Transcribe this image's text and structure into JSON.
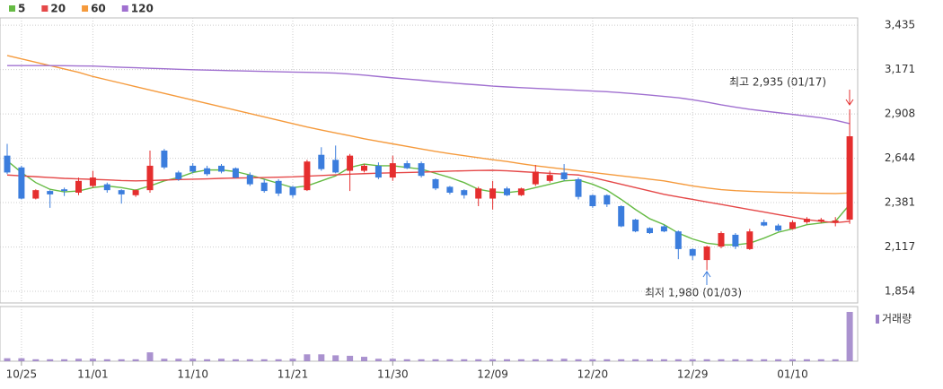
{
  "chart_data": {
    "type": "candlestick",
    "categories": [
      null,
      "10/25",
      null,
      null,
      null,
      null,
      "11/01",
      null,
      null,
      null,
      null,
      null,
      null,
      "11/10",
      null,
      null,
      null,
      null,
      null,
      null,
      "11/21",
      null,
      null,
      null,
      null,
      null,
      null,
      "11/30",
      null,
      null,
      null,
      null,
      null,
      null,
      "12/09",
      null,
      null,
      null,
      null,
      null,
      null,
      "12/20",
      null,
      null,
      null,
      null,
      null,
      null,
      "12/29",
      null,
      null,
      null,
      null,
      null,
      null,
      "01/10",
      null,
      null,
      null,
      null
    ],
    "open": [
      2660,
      2590,
      2405,
      2450,
      2460,
      2440,
      2480,
      2490,
      2455,
      2425,
      2455,
      2690,
      2560,
      2600,
      2585,
      2600,
      2585,
      2545,
      2500,
      2510,
      2475,
      2455,
      2665,
      2635,
      2570,
      2570,
      2600,
      2530,
      2615,
      2615,
      2520,
      2475,
      2455,
      2405,
      2405,
      2465,
      2425,
      2490,
      2510,
      2560,
      2520,
      2425,
      2425,
      2360,
      2280,
      2230,
      2240,
      2210,
      2105,
      2040,
      2120,
      2190,
      2105,
      2265,
      2245,
      2225,
      2265,
      2270,
      2265,
      2280
    ],
    "high": [
      2730,
      2600,
      2460,
      2455,
      2470,
      2530,
      2570,
      2500,
      2460,
      2460,
      2690,
      2700,
      2570,
      2615,
      2600,
      2610,
      2590,
      2560,
      2520,
      2520,
      2480,
      2635,
      2710,
      2720,
      2670,
      2610,
      2620,
      2660,
      2630,
      2625,
      2525,
      2480,
      2460,
      2475,
      2510,
      2475,
      2470,
      2605,
      2570,
      2610,
      2530,
      2430,
      2430,
      2365,
      2285,
      2235,
      2250,
      2215,
      2110,
      2125,
      2210,
      2200,
      2225,
      2280,
      2255,
      2275,
      2295,
      2290,
      2295,
      2935
    ],
    "low": [
      2550,
      2400,
      2400,
      2350,
      2420,
      2425,
      2470,
      2440,
      2375,
      2415,
      2440,
      2580,
      2510,
      2555,
      2540,
      2555,
      2525,
      2480,
      2440,
      2420,
      2410,
      2450,
      2570,
      2555,
      2450,
      2560,
      2520,
      2510,
      2580,
      2530,
      2455,
      2430,
      2405,
      2360,
      2340,
      2420,
      2420,
      2480,
      2500,
      2510,
      2400,
      2350,
      2355,
      2235,
      2205,
      2195,
      2205,
      2045,
      2040,
      1980,
      2110,
      2105,
      2100,
      2240,
      2210,
      2220,
      2255,
      2260,
      2240,
      2255
    ],
    "close": [
      2560,
      2405,
      2455,
      2430,
      2450,
      2510,
      2530,
      2455,
      2430,
      2455,
      2600,
      2590,
      2520,
      2565,
      2550,
      2565,
      2530,
      2490,
      2450,
      2435,
      2425,
      2625,
      2580,
      2560,
      2660,
      2600,
      2530,
      2615,
      2585,
      2540,
      2465,
      2440,
      2425,
      2465,
      2465,
      2425,
      2465,
      2565,
      2545,
      2520,
      2415,
      2360,
      2370,
      2240,
      2210,
      2200,
      2210,
      2105,
      2065,
      2120,
      2200,
      2120,
      2210,
      2245,
      2215,
      2265,
      2285,
      2280,
      2275,
      2775
    ],
    "volume": [
      6,
      6,
      4,
      4,
      4,
      5,
      5,
      4,
      4,
      4,
      18,
      5,
      5,
      5,
      4,
      5,
      4,
      4,
      4,
      4,
      5,
      14,
      14,
      12,
      11,
      9,
      5,
      5,
      4,
      4,
      4,
      4,
      4,
      4,
      4,
      4,
      4,
      4,
      4,
      5,
      4,
      4,
      4,
      4,
      4,
      4,
      4,
      4,
      4,
      4,
      4,
      4,
      4,
      4,
      4,
      4,
      4,
      4,
      4,
      100
    ],
    "up_color": "#e52e2e",
    "down_color": "#3b7ddd",
    "series": [
      {
        "name": "5",
        "color": "#66bb44",
        "values": [
          2630,
          2560,
          2500,
          2460,
          2445,
          2450,
          2470,
          2480,
          2470,
          2455,
          2480,
          2510,
          2530,
          2560,
          2575,
          2575,
          2565,
          2545,
          2520,
          2495,
          2470,
          2480,
          2510,
          2540,
          2590,
          2610,
          2600,
          2600,
          2590,
          2580,
          2555,
          2530,
          2500,
          2460,
          2445,
          2440,
          2450,
          2470,
          2490,
          2510,
          2515,
          2490,
          2455,
          2400,
          2340,
          2285,
          2250,
          2200,
          2165,
          2140,
          2130,
          2130,
          2140,
          2170,
          2205,
          2225,
          2250,
          2260,
          2270,
          2370
        ]
      },
      {
        "name": "20",
        "color": "#e54848",
        "values": [
          2545,
          2540,
          2535,
          2530,
          2525,
          2522,
          2519,
          2516,
          2512,
          2510,
          2512,
          2515,
          2518,
          2520,
          2522,
          2525,
          2527,
          2528,
          2530,
          2532,
          2534,
          2538,
          2542,
          2546,
          2550,
          2553,
          2556,
          2558,
          2560,
          2562,
          2565,
          2568,
          2570,
          2572,
          2573,
          2570,
          2565,
          2560,
          2555,
          2550,
          2545,
          2530,
          2510,
          2490,
          2470,
          2450,
          2430,
          2415,
          2400,
          2385,
          2370,
          2355,
          2340,
          2325,
          2310,
          2295,
          2280,
          2270,
          2262,
          2270
        ]
      },
      {
        "name": "60",
        "color": "#f59a3c",
        "values": [
          3255,
          3235,
          3215,
          3195,
          3175,
          3155,
          3130,
          3110,
          3090,
          3070,
          3050,
          3030,
          3010,
          2990,
          2970,
          2950,
          2930,
          2910,
          2890,
          2870,
          2850,
          2830,
          2812,
          2795,
          2778,
          2760,
          2745,
          2730,
          2715,
          2700,
          2685,
          2672,
          2660,
          2648,
          2636,
          2625,
          2612,
          2600,
          2590,
          2580,
          2570,
          2560,
          2550,
          2540,
          2530,
          2520,
          2510,
          2495,
          2480,
          2468,
          2458,
          2452,
          2448,
          2445,
          2442,
          2440,
          2438,
          2436,
          2435,
          2438
        ]
      },
      {
        "name": "120",
        "color": "#a070d0",
        "values": [
          3195,
          3195,
          3195,
          3195,
          3194,
          3193,
          3192,
          3188,
          3185,
          3182,
          3179,
          3176,
          3173,
          3170,
          3168,
          3166,
          3164,
          3162,
          3160,
          3158,
          3156,
          3155,
          3153,
          3150,
          3145,
          3138,
          3130,
          3122,
          3115,
          3108,
          3100,
          3093,
          3086,
          3080,
          3073,
          3068,
          3064,
          3060,
          3056,
          3052,
          3048,
          3044,
          3040,
          3034,
          3027,
          3020,
          3012,
          3004,
          2992,
          2978,
          2962,
          2948,
          2935,
          2925,
          2915,
          2905,
          2895,
          2885,
          2870,
          2850
        ]
      }
    ],
    "ylim": [
      1785,
      3478
    ],
    "yticks": [
      {
        "value": 1854,
        "label": "1,854"
      },
      {
        "value": 2117,
        "label": "2,117"
      },
      {
        "value": 2381,
        "label": "2,381"
      },
      {
        "value": 2644,
        "label": "2,644"
      },
      {
        "value": 2908,
        "label": "2,908"
      },
      {
        "value": 3171,
        "label": "3,171"
      },
      {
        "value": 3435,
        "label": "3,435"
      }
    ],
    "grid": true,
    "annotations": [
      {
        "text": "최고 2,935 (01/17)",
        "color": "#e52e2e"
      },
      {
        "text": "최저 1,980 (01/03)",
        "color": "#3b7ddd"
      }
    ],
    "volume_label": "거래량",
    "volume_color": "#9b7fc7"
  }
}
